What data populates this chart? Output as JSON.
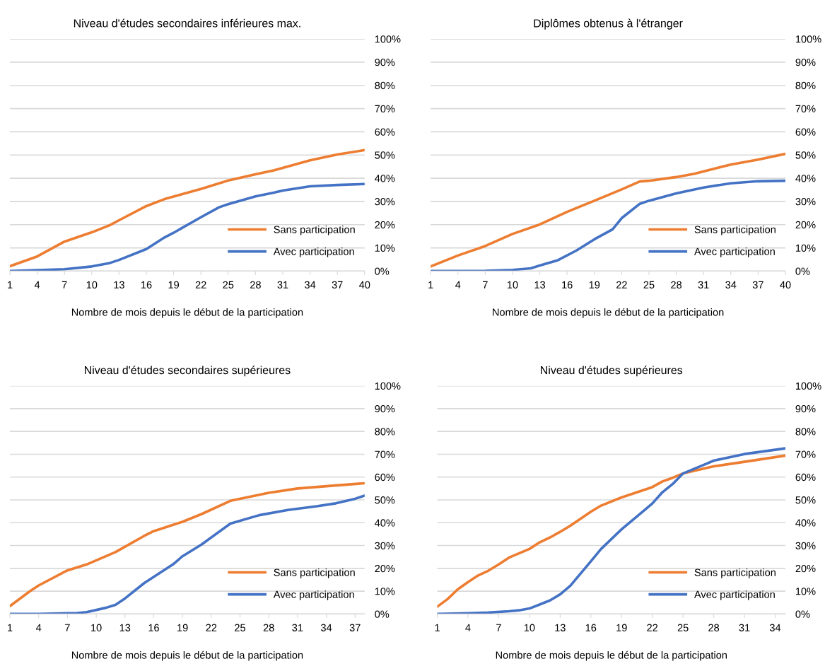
{
  "chart_data": [
    {
      "type": "line",
      "title": "Niveau d'études secondaires inférieures max.",
      "xlabel": "Nombre de mois depuis le début de la participation",
      "xlim": [
        1,
        40
      ],
      "xticks": [
        1,
        4,
        7,
        10,
        13,
        16,
        19,
        22,
        25,
        28,
        31,
        34,
        37,
        40
      ],
      "ylim": [
        0,
        100
      ],
      "yticks": [
        {
          "value": 0,
          "label": "0%"
        },
        {
          "value": 10,
          "label": "10%"
        },
        {
          "value": 20,
          "label": "20%"
        },
        {
          "value": 30,
          "label": "30%"
        },
        {
          "value": 40,
          "label": "40%"
        },
        {
          "value": 50,
          "label": "50%"
        },
        {
          "value": 60,
          "label": "60%"
        },
        {
          "value": 70,
          "label": "70%"
        },
        {
          "value": 80,
          "label": "80%"
        },
        {
          "value": 90,
          "label": "90%"
        },
        {
          "value": 100,
          "label": "100%"
        }
      ],
      "grid": "y",
      "legend": "bottom right",
      "marker": "none",
      "line_style": "solid",
      "series": [
        {
          "name": "Sans participation",
          "color": "#ed7d31",
          "x": [
            1,
            4,
            7,
            10,
            12,
            13,
            16,
            18,
            22,
            25,
            28,
            30,
            34,
            37,
            40
          ],
          "values": [
            2.1,
            6.3,
            12.7,
            16.7,
            19.8,
            21.9,
            28,
            31,
            35.4,
            39,
            41.7,
            43.4,
            47.7,
            50.2,
            52.1
          ]
        },
        {
          "name": "Avec participation",
          "color": "#4472c4",
          "x": [
            1,
            4,
            7,
            10,
            12,
            13,
            16,
            18,
            19,
            22,
            24,
            25,
            28,
            30,
            31,
            34,
            37,
            40
          ],
          "values": [
            0,
            0.4,
            0.8,
            2,
            3.5,
            4.8,
            9.5,
            14.5,
            16.5,
            23.2,
            27.5,
            28.8,
            32.2,
            33.8,
            34.7,
            36.5,
            37.1,
            37.5
          ]
        }
      ]
    },
    {
      "type": "line",
      "title": "Diplômes obtenus à l'étranger",
      "xlabel": "Nombre de mois depuis le début de la participation",
      "xlim": [
        1,
        40
      ],
      "xticks": [
        1,
        4,
        7,
        10,
        13,
        16,
        19,
        22,
        25,
        28,
        31,
        34,
        37,
        40
      ],
      "ylim": [
        0,
        100
      ],
      "yticks": [
        {
          "value": 0,
          "label": "0%"
        },
        {
          "value": 10,
          "label": "10%"
        },
        {
          "value": 20,
          "label": "20%"
        },
        {
          "value": 30,
          "label": "30%"
        },
        {
          "value": 40,
          "label": "40%"
        },
        {
          "value": 50,
          "label": "50%"
        },
        {
          "value": 60,
          "label": "60%"
        },
        {
          "value": 70,
          "label": "70%"
        },
        {
          "value": 80,
          "label": "80%"
        },
        {
          "value": 90,
          "label": "90%"
        },
        {
          "value": 100,
          "label": "100%"
        }
      ],
      "grid": "y",
      "legend": "bottom right",
      "marker": "none",
      "line_style": "solid",
      "series": [
        {
          "name": "Sans participation",
          "color": "#ed7d31",
          "x": [
            1,
            4,
            7,
            10,
            13,
            16,
            19,
            22,
            24,
            25,
            28,
            30,
            34,
            37,
            40
          ],
          "values": [
            2,
            6.7,
            10.8,
            16,
            20.1,
            25.5,
            30.3,
            35.2,
            38.6,
            38.9,
            40.5,
            41.9,
            45.9,
            48,
            50.5
          ]
        },
        {
          "name": "Avec participation",
          "color": "#4472c4",
          "x": [
            1,
            7,
            10,
            12,
            13,
            15,
            17,
            19,
            21,
            22,
            24,
            25,
            28,
            31,
            34,
            37,
            40
          ],
          "values": [
            0,
            0.1,
            0.5,
            1.2,
            2.4,
            4.7,
            8.8,
            13.7,
            18,
            22.8,
            29,
            30.3,
            33.5,
            36,
            37.8,
            38.7,
            38.9
          ]
        }
      ]
    },
    {
      "type": "line",
      "title": "Niveau d'études secondaires supérieures",
      "xlabel": "Nombre de mois depuis le début de la participation",
      "xlim": [
        1,
        38
      ],
      "xticks": [
        1,
        4,
        7,
        10,
        13,
        16,
        19,
        22,
        25,
        28,
        31,
        34,
        37
      ],
      "ylim": [
        0,
        100
      ],
      "yticks": [
        {
          "value": 0,
          "label": "0%"
        },
        {
          "value": 10,
          "label": "10%"
        },
        {
          "value": 20,
          "label": "20%"
        },
        {
          "value": 30,
          "label": "30%"
        },
        {
          "value": 40,
          "label": "40%"
        },
        {
          "value": 50,
          "label": "50%"
        },
        {
          "value": 60,
          "label": "60%"
        },
        {
          "value": 70,
          "label": "70%"
        },
        {
          "value": 80,
          "label": "80%"
        },
        {
          "value": 90,
          "label": "90%"
        },
        {
          "value": 100,
          "label": "100%"
        }
      ],
      "grid": "y",
      "legend": "bottom right",
      "marker": "none",
      "line_style": "solid",
      "series": [
        {
          "name": "Sans participation",
          "color": "#ed7d31",
          "x": [
            1,
            3,
            4,
            7,
            9,
            12,
            15,
            16,
            19,
            21,
            24,
            28,
            31,
            34,
            38
          ],
          "values": [
            3.4,
            9.7,
            12.5,
            19.1,
            21.7,
            27.1,
            34.2,
            36.3,
            40.4,
            43.8,
            49.6,
            53.1,
            55,
            56,
            57.3
          ]
        },
        {
          "name": "Avec participation",
          "color": "#4472c4",
          "x": [
            1,
            4,
            7,
            8,
            9,
            11,
            12,
            13,
            15,
            18,
            19,
            21,
            24,
            27,
            30,
            33,
            35,
            37,
            38
          ],
          "values": [
            0,
            0,
            0.3,
            0.4,
            0.8,
            2.7,
            4,
            6.8,
            13.5,
            21.7,
            25.3,
            30.5,
            39.6,
            43.3,
            45.6,
            47.2,
            48.5,
            50.5,
            51.9
          ]
        }
      ]
    },
    {
      "type": "line",
      "title": "Niveau d'études supérieures",
      "xlabel": "Nombre de mois depuis le début de la participation",
      "xlim": [
        1,
        35
      ],
      "xticks": [
        1,
        4,
        7,
        10,
        13,
        16,
        19,
        22,
        25,
        28,
        31,
        34
      ],
      "ylim": [
        0,
        100
      ],
      "yticks": [
        {
          "value": 0,
          "label": "0%"
        },
        {
          "value": 10,
          "label": "10%"
        },
        {
          "value": 20,
          "label": "20%"
        },
        {
          "value": 30,
          "label": "30%"
        },
        {
          "value": 40,
          "label": "40%"
        },
        {
          "value": 50,
          "label": "50%"
        },
        {
          "value": 60,
          "label": "60%"
        },
        {
          "value": 70,
          "label": "70%"
        },
        {
          "value": 80,
          "label": "80%"
        },
        {
          "value": 90,
          "label": "90%"
        },
        {
          "value": 100,
          "label": "100%"
        }
      ],
      "grid": "y",
      "legend": "bottom right",
      "marker": "none",
      "line_style": "solid",
      "series": [
        {
          "name": "Sans participation",
          "color": "#ed7d31",
          "x": [
            1,
            2,
            3,
            4,
            5,
            6,
            7,
            8,
            10,
            11,
            12,
            13,
            14,
            16,
            17,
            19,
            22,
            23,
            24,
            25,
            28,
            31,
            35
          ],
          "values": [
            3.2,
            6.5,
            10.8,
            14,
            16.9,
            19,
            21.7,
            24.7,
            28.5,
            31.4,
            33.5,
            36,
            38.7,
            44.8,
            47.5,
            51.1,
            55.6,
            58.1,
            59.7,
            61.6,
            64.7,
            66.7,
            69.4
          ]
        },
        {
          "name": "Avec participation",
          "color": "#4472c4",
          "x": [
            1,
            4,
            6,
            8,
            9,
            10,
            12,
            13,
            14,
            16,
            17,
            19,
            21,
            22,
            23,
            24,
            25,
            27,
            28,
            31,
            35
          ],
          "values": [
            0,
            0.3,
            0.6,
            1.2,
            1.6,
            2.4,
            5.9,
            8.6,
            12.4,
            23.1,
            28.5,
            37.1,
            44.6,
            48.4,
            53.4,
            57,
            61.6,
            65.3,
            67.2,
            70.1,
            72.6
          ]
        }
      ]
    }
  ]
}
